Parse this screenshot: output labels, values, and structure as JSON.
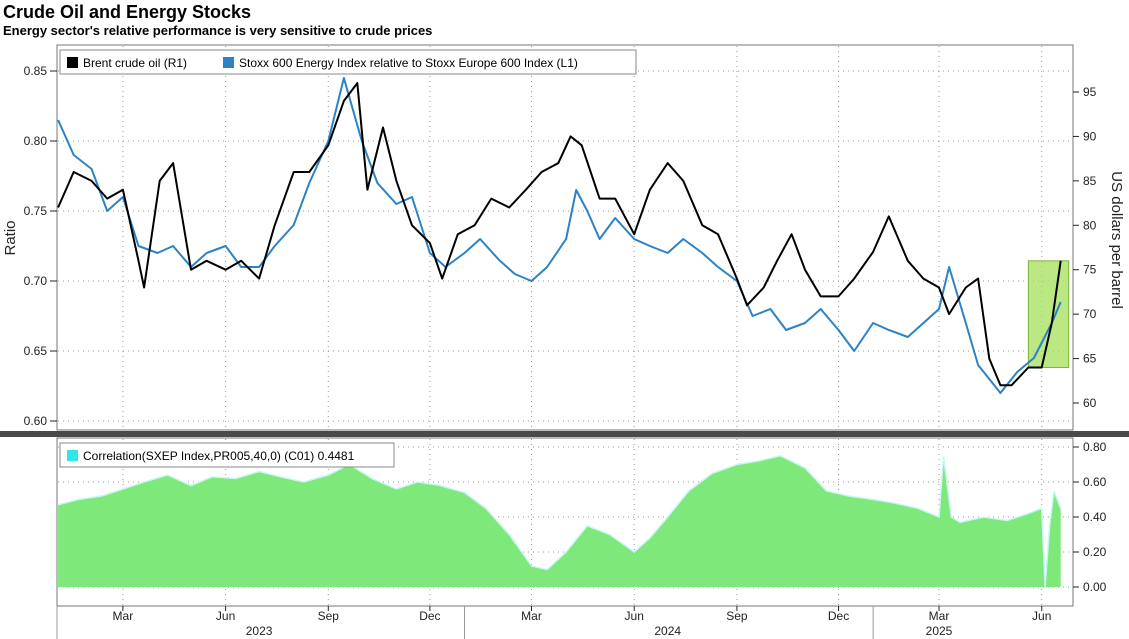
{
  "header": {
    "title": "Crude Oil and Energy Stocks",
    "subtitle": "Energy sector's relative performance is very sensitive to crude prices"
  },
  "chart_data": [
    {
      "type": "line",
      "panel": "top",
      "series": [
        {
          "name": "Brent crude oil (R1)",
          "axis": "right",
          "color": "#000000",
          "x": [
            "2023-01-02",
            "2023-01-16",
            "2023-02-01",
            "2023-02-15",
            "2023-03-01",
            "2023-03-15",
            "2023-03-20",
            "2023-04-03",
            "2023-04-15",
            "2023-05-01",
            "2023-05-15",
            "2023-06-01",
            "2023-06-15",
            "2023-07-01",
            "2023-07-15",
            "2023-08-01",
            "2023-08-15",
            "2023-09-01",
            "2023-09-15",
            "2023-09-27",
            "2023-10-06",
            "2023-10-20",
            "2023-11-01",
            "2023-11-15",
            "2023-12-01",
            "2023-12-12",
            "2023-12-26",
            "2024-01-10",
            "2024-01-25",
            "2024-02-10",
            "2024-02-25",
            "2024-03-10",
            "2024-03-25",
            "2024-04-05",
            "2024-04-15",
            "2024-05-01",
            "2024-05-15",
            "2024-06-01",
            "2024-06-15",
            "2024-07-01",
            "2024-07-15",
            "2024-08-01",
            "2024-08-15",
            "2024-09-01",
            "2024-09-10",
            "2024-09-25",
            "2024-10-07",
            "2024-10-20",
            "2024-11-01",
            "2024-11-15",
            "2024-12-01",
            "2024-12-15",
            "2025-01-01",
            "2025-01-15",
            "2025-02-01",
            "2025-02-15",
            "2025-03-01",
            "2025-03-10",
            "2025-03-25",
            "2025-04-05",
            "2025-04-15",
            "2025-04-25",
            "2025-05-05",
            "2025-05-20",
            "2025-06-01",
            "2025-06-10",
            "2025-06-18"
          ],
          "values": [
            82,
            86,
            85,
            83,
            84,
            76,
            73,
            85,
            87,
            75,
            76,
            75,
            76,
            74,
            80,
            86,
            86,
            89,
            94,
            96,
            84,
            91,
            85,
            80,
            78,
            74,
            79,
            80,
            83,
            82,
            84,
            86,
            87,
            90,
            89,
            83,
            83,
            79,
            84,
            87,
            85,
            80,
            79,
            74,
            71,
            73,
            76,
            79,
            75,
            72,
            72,
            74,
            77,
            81,
            76,
            74,
            73,
            70,
            73,
            74,
            65,
            62,
            62,
            64,
            64,
            69,
            76
          ]
        },
        {
          "name": "Stoxx 600 Energy Index relative to Stoxx Europe 600 Index (L1)",
          "axis": "left",
          "color": "#2b83c6",
          "x": [
            "2023-01-02",
            "2023-01-16",
            "2023-02-01",
            "2023-02-15",
            "2023-03-01",
            "2023-03-15",
            "2023-04-01",
            "2023-04-15",
            "2023-05-01",
            "2023-05-15",
            "2023-06-01",
            "2023-06-15",
            "2023-07-01",
            "2023-07-15",
            "2023-08-01",
            "2023-08-15",
            "2023-09-01",
            "2023-09-15",
            "2023-10-01",
            "2023-10-15",
            "2023-11-01",
            "2023-11-15",
            "2023-12-01",
            "2023-12-15",
            "2024-01-01",
            "2024-01-15",
            "2024-02-01",
            "2024-02-15",
            "2024-03-01",
            "2024-03-15",
            "2024-04-01",
            "2024-04-10",
            "2024-04-20",
            "2024-05-01",
            "2024-05-15",
            "2024-06-01",
            "2024-06-15",
            "2024-07-01",
            "2024-07-15",
            "2024-08-01",
            "2024-08-15",
            "2024-09-01",
            "2024-09-15",
            "2024-10-01",
            "2024-10-15",
            "2024-11-01",
            "2024-11-15",
            "2024-12-01",
            "2024-12-15",
            "2025-01-01",
            "2025-01-15",
            "2025-02-01",
            "2025-02-15",
            "2025-03-01",
            "2025-03-10",
            "2025-03-25",
            "2025-04-05",
            "2025-04-15",
            "2025-04-25",
            "2025-05-10",
            "2025-05-25",
            "2025-06-10",
            "2025-06-18"
          ],
          "values": [
            0.815,
            0.79,
            0.78,
            0.75,
            0.76,
            0.725,
            0.72,
            0.725,
            0.71,
            0.72,
            0.725,
            0.71,
            0.71,
            0.725,
            0.74,
            0.77,
            0.8,
            0.845,
            0.8,
            0.77,
            0.755,
            0.76,
            0.72,
            0.71,
            0.72,
            0.73,
            0.715,
            0.705,
            0.7,
            0.71,
            0.73,
            0.765,
            0.75,
            0.73,
            0.745,
            0.73,
            0.725,
            0.72,
            0.73,
            0.72,
            0.71,
            0.7,
            0.675,
            0.68,
            0.665,
            0.67,
            0.68,
            0.665,
            0.65,
            0.67,
            0.665,
            0.66,
            0.67,
            0.68,
            0.71,
            0.67,
            0.64,
            0.63,
            0.62,
            0.635,
            0.645,
            0.67,
            0.685
          ]
        }
      ],
      "ylabel_left": "Ratio",
      "ylabel_right": "US dollars per barrel",
      "ylim_left": [
        0.6,
        0.85
      ],
      "yticks_left": [
        "0.60",
        "0.65",
        "0.70",
        "0.75",
        "0.80",
        "0.85"
      ],
      "ylim_right": [
        60,
        95
      ],
      "yticks_right": [
        "60",
        "65",
        "70",
        "75",
        "80",
        "85",
        "90",
        "95"
      ],
      "legend": "top-left",
      "highlight": {
        "x_range": [
          "2025-05-20",
          "2025-06-18"
        ],
        "y_range_right": [
          64,
          76
        ],
        "color": "#a6e05a"
      }
    },
    {
      "type": "area",
      "panel": "bottom",
      "series": [
        {
          "name": "Correlation(SXEP Index,PR005,40,0) (C01) 0.4481",
          "color": "#7ee87a",
          "x": [
            "2023-01-02",
            "2023-01-20",
            "2023-02-10",
            "2023-03-01",
            "2023-03-20",
            "2023-04-10",
            "2023-05-01",
            "2023-05-20",
            "2023-06-10",
            "2023-07-01",
            "2023-07-20",
            "2023-08-10",
            "2023-09-01",
            "2023-09-20",
            "2023-10-10",
            "2023-11-01",
            "2023-11-20",
            "2023-12-10",
            "2024-01-01",
            "2024-01-20",
            "2024-02-10",
            "2024-03-01",
            "2024-03-15",
            "2024-04-01",
            "2024-04-20",
            "2024-05-10",
            "2024-06-01",
            "2024-06-15",
            "2024-07-01",
            "2024-07-20",
            "2024-08-10",
            "2024-09-01",
            "2024-09-20",
            "2024-10-10",
            "2024-11-01",
            "2024-11-20",
            "2024-12-10",
            "2025-01-01",
            "2025-01-20",
            "2025-02-10",
            "2025-03-01",
            "2025-03-05",
            "2025-03-12",
            "2025-03-20",
            "2025-04-10",
            "2025-05-01",
            "2025-05-20",
            "2025-06-01",
            "2025-06-04",
            "2025-06-08",
            "2025-06-12",
            "2025-06-18"
          ],
          "values": [
            0.47,
            0.5,
            0.52,
            0.56,
            0.6,
            0.64,
            0.58,
            0.63,
            0.62,
            0.66,
            0.63,
            0.6,
            0.64,
            0.7,
            0.62,
            0.56,
            0.6,
            0.58,
            0.54,
            0.45,
            0.3,
            0.12,
            0.1,
            0.2,
            0.35,
            0.3,
            0.2,
            0.28,
            0.4,
            0.55,
            0.65,
            0.7,
            0.72,
            0.75,
            0.68,
            0.55,
            0.52,
            0.5,
            0.48,
            0.45,
            0.4,
            0.75,
            0.4,
            0.37,
            0.4,
            0.38,
            0.42,
            0.45,
            0.0,
            0.35,
            0.55,
            0.4481
          ]
        }
      ],
      "ylim": [
        -0.1,
        0.8
      ],
      "yticks": [
        "0.00",
        "0.20",
        "0.40",
        "0.60",
        "0.80"
      ]
    }
  ],
  "x_axis": {
    "month_labels": [
      "Mar",
      "Jun",
      "Sep",
      "Dec",
      "Mar",
      "Jun",
      "Sep",
      "Dec",
      "Mar",
      "Jun"
    ],
    "year_labels": [
      "2023",
      "2024",
      "2025"
    ]
  }
}
